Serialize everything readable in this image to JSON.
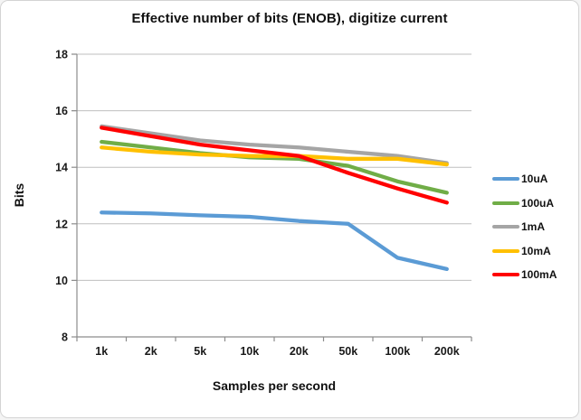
{
  "chart_data": {
    "type": "line",
    "title": "Effective number of bits (ENOB), digitize current",
    "xlabel": "Samples per second",
    "ylabel": "Bits",
    "categories": [
      "1k",
      "2k",
      "5k",
      "10k",
      "20k",
      "50k",
      "100k",
      "200k"
    ],
    "ylim": [
      8,
      18
    ],
    "yticks": [
      8,
      10,
      12,
      14,
      16,
      18
    ],
    "grid": "horizontal",
    "legend_position": "right",
    "series": [
      {
        "name": "10uA",
        "color": "#5B9BD5",
        "values": [
          12.4,
          12.37,
          12.3,
          12.25,
          12.1,
          12.0,
          10.8,
          10.4
        ]
      },
      {
        "name": "100uA",
        "color": "#70AD47",
        "values": [
          14.9,
          14.7,
          14.5,
          14.35,
          14.3,
          14.05,
          13.5,
          13.1
        ]
      },
      {
        "name": "1mA",
        "color": "#A5A5A5",
        "values": [
          15.45,
          15.2,
          14.95,
          14.8,
          14.7,
          14.55,
          14.4,
          14.15
        ]
      },
      {
        "name": "10mA",
        "color": "#FFC000",
        "values": [
          14.7,
          14.55,
          14.45,
          14.4,
          14.4,
          14.3,
          14.3,
          14.1
        ]
      },
      {
        "name": "100mA",
        "color": "#FF0000",
        "values": [
          15.4,
          15.1,
          14.8,
          14.6,
          14.4,
          13.8,
          13.25,
          12.75
        ]
      }
    ]
  }
}
